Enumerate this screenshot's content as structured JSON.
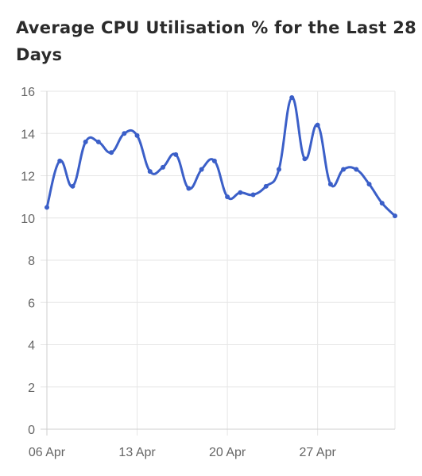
{
  "chart_data": {
    "type": "line",
    "title": "Average CPU Utilisation % for the Last 28 Days",
    "xlabel": "",
    "ylabel": "",
    "x_ticks": [
      "06 Apr",
      "13 Apr",
      "20 Apr",
      "27 Apr"
    ],
    "y_ticks": [
      "0",
      "2",
      "4",
      "6",
      "8",
      "10",
      "12",
      "14",
      "16"
    ],
    "ylim": [
      0,
      16
    ],
    "grid": true,
    "legend": "none",
    "line_color": "#3b5fc8",
    "series": [
      {
        "values": [
          10.5,
          12.7,
          11.5,
          13.6,
          13.6,
          13.1,
          14.0,
          13.9,
          12.2,
          12.4,
          13.0,
          11.4,
          12.3,
          12.7,
          11.0,
          11.2,
          11.1,
          11.5,
          12.3,
          15.7,
          12.8,
          14.4,
          11.6,
          12.3,
          12.3,
          11.6,
          10.7,
          10.1
        ]
      }
    ]
  }
}
